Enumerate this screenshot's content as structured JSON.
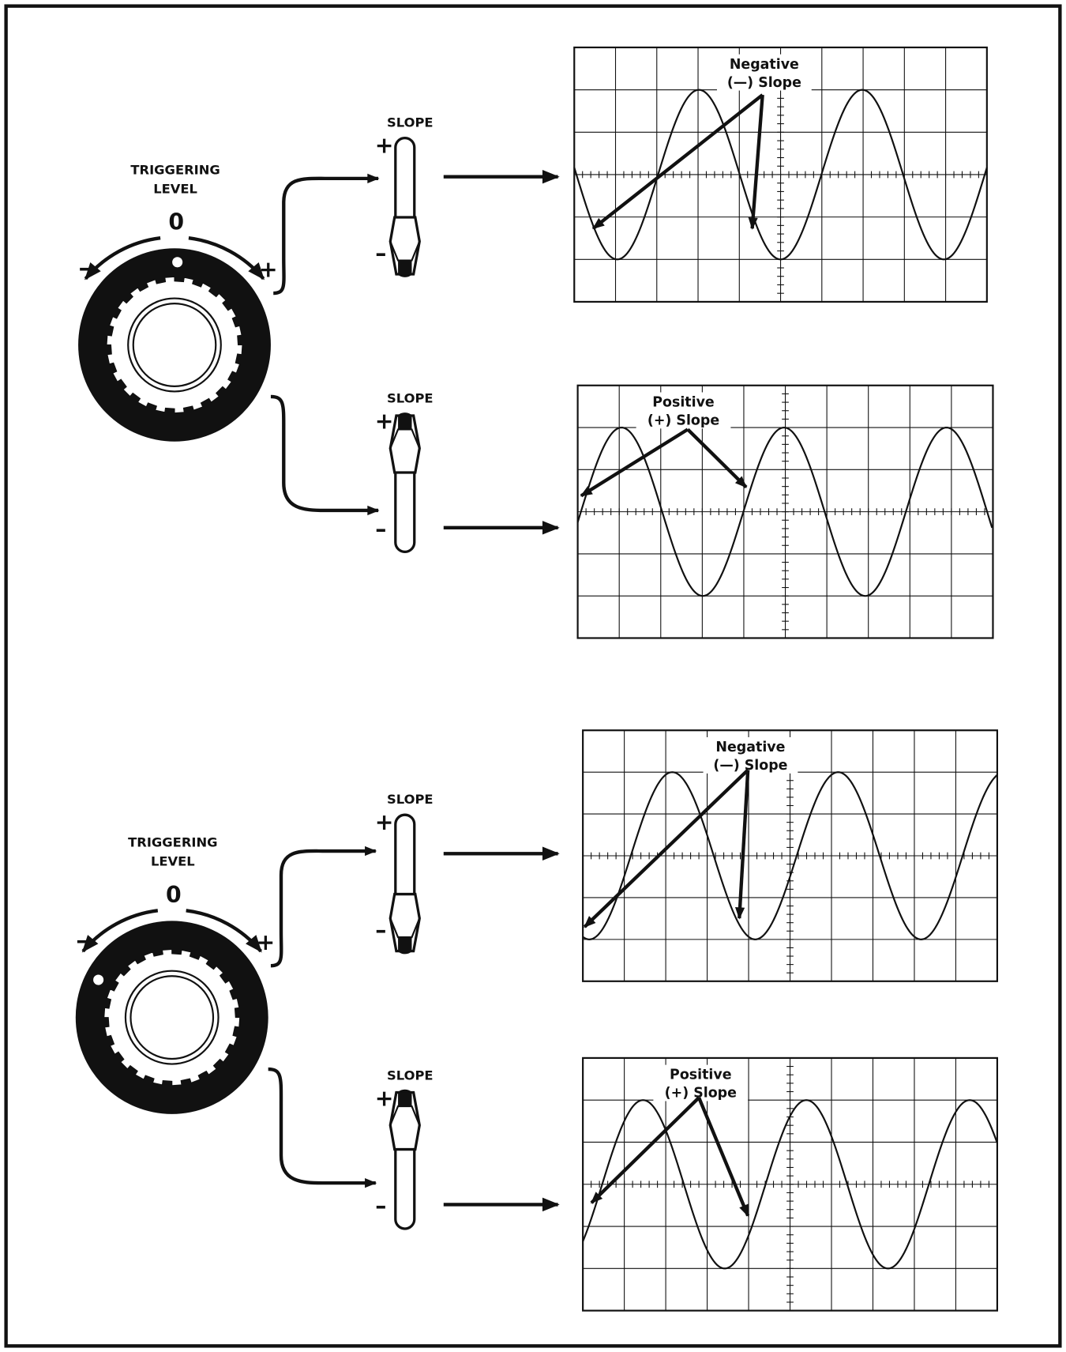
{
  "panels": [
    {
      "knob": {
        "label_line1": "TRIGGERING",
        "label_line2": "LEVEL",
        "zero": "0",
        "minus": "–",
        "plus": "+"
      },
      "switches": [
        {
          "title": "SLOPE",
          "plus": "+",
          "minus": "–",
          "screen": {
            "label_line1": "Negative",
            "label_line2": "(—)  Slope"
          }
        },
        {
          "title": "SLOPE",
          "plus": "+",
          "minus": "–",
          "screen": {
            "label_line1": "Positive",
            "label_line2": "(+)  Slope"
          }
        }
      ]
    },
    {
      "knob": {
        "label_line1": "TRIGGERING",
        "label_line2": "LEVEL",
        "zero": "0",
        "minus": "–",
        "plus": "+"
      },
      "switches": [
        {
          "title": "SLOPE",
          "plus": "+",
          "minus": "–",
          "screen": {
            "label_line1": "Negative",
            "label_line2": "(—)  Slope"
          }
        },
        {
          "title": "SLOPE",
          "plus": "+",
          "minus": "–",
          "screen": {
            "label_line1": "Positive",
            "label_line2": "(+)  Slope"
          }
        }
      ]
    }
  ]
}
